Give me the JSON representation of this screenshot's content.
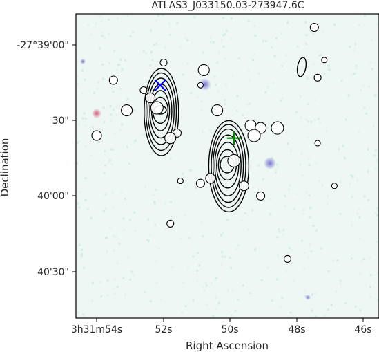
{
  "chart_data": {
    "type": "scatter",
    "title": "ATLAS3_J033150.03-273947.6C",
    "xlabel": "Right Ascension",
    "ylabel": "Declination",
    "x_ticks": [
      "3h31m54s",
      "52s",
      "50s",
      "48s",
      "46s"
    ],
    "y_ticks": [
      "-27°39'00\"",
      "30\"",
      "40'00\"",
      "40'30\""
    ],
    "grid": false,
    "background_colormap": "pale cyan optical image",
    "colors": {
      "radio_marker": "#0000ff",
      "ir_marker": "#008000",
      "contour": "#000000",
      "source_fill": "#ffffff",
      "source_edge": "#000000"
    },
    "radio_component_marker": {
      "symbol": "x",
      "label": "radio",
      "color": "#0000ff",
      "ra_sec": 52.1,
      "dec_arcsec": 16
    },
    "host_marker": {
      "symbol": "+",
      "label": "host",
      "color": "#008000",
      "ra_sec": 49.9,
      "dec_arcsec": 37
    },
    "contour_groups": [
      {
        "name": "north-west component",
        "levels": 7
      },
      {
        "name": "central component",
        "levels": 7
      },
      {
        "name": "north-east small component",
        "levels": 1
      }
    ],
    "sources": [
      {
        "ra_sec": 47.5,
        "dec_arcsec": -7,
        "r": 6
      },
      {
        "ra_sec": 47.2,
        "dec_arcsec": 6,
        "r": 4
      },
      {
        "ra_sec": 52.0,
        "dec_arcsec": 7,
        "r": 5
      },
      {
        "ra_sec": 50.8,
        "dec_arcsec": 10,
        "r": 8
      },
      {
        "ra_sec": 53.5,
        "dec_arcsec": 14,
        "r": 6
      },
      {
        "ra_sec": 47.4,
        "dec_arcsec": 13,
        "r": 5
      },
      {
        "ra_sec": 50.9,
        "dec_arcsec": 16,
        "r": 4
      },
      {
        "ra_sec": 52.4,
        "dec_arcsec": 21,
        "r": 7
      },
      {
        "ra_sec": 52.2,
        "dec_arcsec": 25,
        "r": 9
      },
      {
        "ra_sec": 52.6,
        "dec_arcsec": 18,
        "r": 5
      },
      {
        "ra_sec": 53.1,
        "dec_arcsec": 26,
        "r": 8
      },
      {
        "ra_sec": 50.4,
        "dec_arcsec": 26,
        "r": 8
      },
      {
        "ra_sec": 49.4,
        "dec_arcsec": 32,
        "r": 8
      },
      {
        "ra_sec": 48.6,
        "dec_arcsec": 33,
        "r": 9
      },
      {
        "ra_sec": 49.1,
        "dec_arcsec": 33,
        "r": 8
      },
      {
        "ra_sec": 49.3,
        "dec_arcsec": 36,
        "r": 9
      },
      {
        "ra_sec": 51.6,
        "dec_arcsec": 35,
        "r": 6
      },
      {
        "ra_sec": 51.8,
        "dec_arcsec": 37,
        "r": 8
      },
      {
        "ra_sec": 54.0,
        "dec_arcsec": 36,
        "r": 7
      },
      {
        "ra_sec": 47.4,
        "dec_arcsec": 39,
        "r": 4
      },
      {
        "ra_sec": 49.9,
        "dec_arcsec": 46,
        "r": 9
      },
      {
        "ra_sec": 50.6,
        "dec_arcsec": 53,
        "r": 7
      },
      {
        "ra_sec": 50.9,
        "dec_arcsec": 55,
        "r": 6
      },
      {
        "ra_sec": 51.5,
        "dec_arcsec": 54,
        "r": 4
      },
      {
        "ra_sec": 49.6,
        "dec_arcsec": 56,
        "r": 7
      },
      {
        "ra_sec": 49.1,
        "dec_arcsec": 60,
        "r": 6
      },
      {
        "ra_sec": 46.9,
        "dec_arcsec": 56,
        "r": 4
      },
      {
        "ra_sec": 51.8,
        "dec_arcsec": 71,
        "r": 5
      },
      {
        "ra_sec": 48.3,
        "dec_arcsec": 85,
        "r": 5
      }
    ]
  }
}
